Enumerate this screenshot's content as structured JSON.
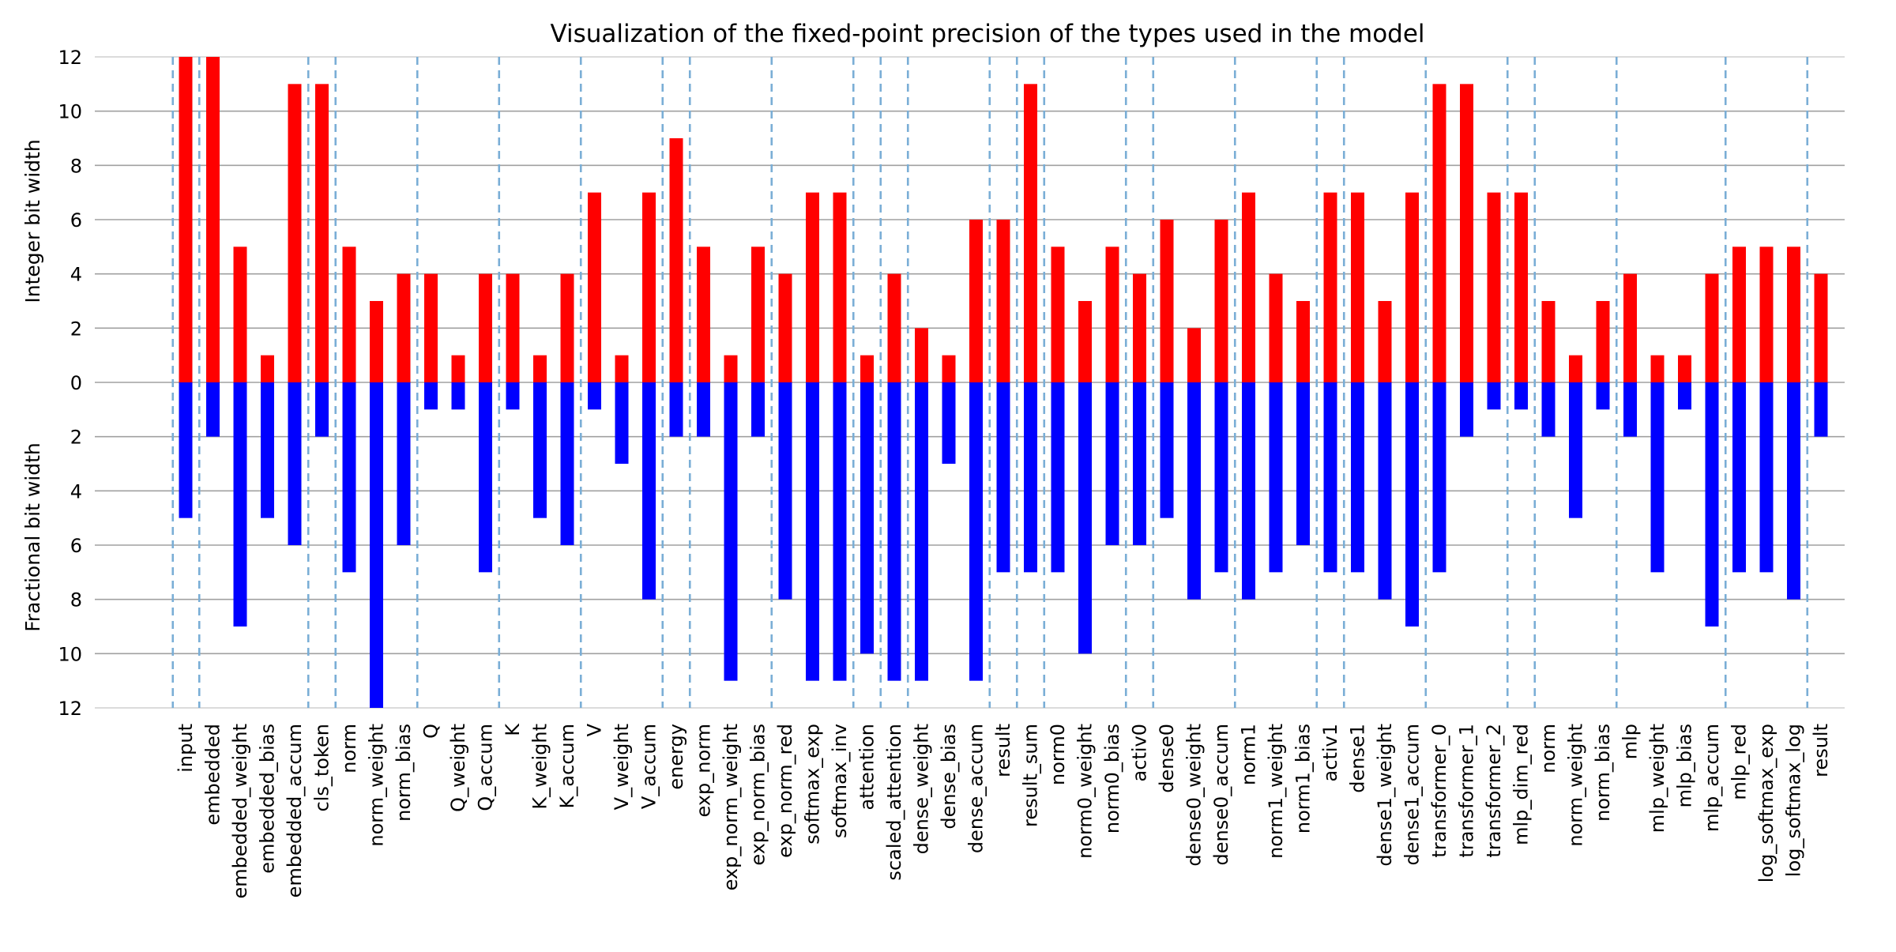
{
  "chart_data": {
    "type": "bar",
    "title": "Visualization of the fixed-point precision of the types used in the model",
    "ylabel_top": "Integer bit width",
    "ylabel_bottom": "Fractional bit width",
    "ylim": [
      -12,
      12
    ],
    "yticks": [
      12,
      10,
      8,
      6,
      4,
      2,
      0,
      2,
      4,
      6,
      8,
      10,
      12
    ],
    "grid": "horizontal",
    "categories": [
      "input",
      "embedded",
      "embedded_weight",
      "embedded_bias",
      "embedded_accum",
      "cls_token",
      "norm",
      "norm_weight",
      "norm_bias",
      "Q",
      "Q_weight",
      "Q_accum",
      "K",
      "K_weight",
      "K_accum",
      "V",
      "V_weight",
      "V_accum",
      "energy",
      "exp_norm",
      "exp_norm_weight",
      "exp_norm_bias",
      "exp_norm_red",
      "softmax_exp",
      "softmax_inv",
      "attention",
      "scaled_attention",
      "dense_weight",
      "dense_bias",
      "dense_accum",
      "result",
      "result_sum",
      "norm0",
      "norm0_weight",
      "norm0_bias",
      "activ0",
      "dense0",
      "dense0_weight",
      "dense0_accum",
      "norm1",
      "norm1_weight",
      "norm1_bias",
      "activ1",
      "dense1",
      "dense1_weight",
      "dense1_accum",
      "transformer_0",
      "transformer_1",
      "transformer_2",
      "mlp_dim_red",
      "norm",
      "norm_weight",
      "norm_bias",
      "mlp",
      "mlp_weight",
      "mlp_bias",
      "mlp_accum",
      "mlp_red",
      "log_softmax_exp",
      "log_softmax_log",
      "result"
    ],
    "series": [
      {
        "name": "",
        "color": "#ff0000",
        "values": [
          12,
          12,
          5,
          1,
          11,
          11,
          5,
          3,
          4,
          4,
          1,
          4,
          4,
          1,
          4,
          7,
          1,
          7,
          9,
          5,
          1,
          5,
          4,
          7,
          7,
          1,
          4,
          2,
          1,
          6,
          6,
          11,
          5,
          3,
          5,
          4,
          6,
          2,
          6,
          7,
          4,
          3,
          7,
          7,
          3,
          7,
          11,
          11,
          7,
          7,
          3,
          1,
          3,
          4,
          1,
          1,
          4,
          5,
          5,
          5,
          4
        ]
      },
      {
        "name": "",
        "color": "#0000ff",
        "values": [
          5,
          2,
          9,
          5,
          6,
          2,
          7,
          12,
          6,
          1,
          1,
          7,
          1,
          5,
          6,
          1,
          3,
          8,
          2,
          2,
          11,
          2,
          8,
          11,
          11,
          10,
          11,
          11,
          3,
          11,
          7,
          7,
          7,
          10,
          6,
          6,
          5,
          8,
          7,
          8,
          7,
          6,
          7,
          7,
          8,
          9,
          7,
          2,
          1,
          1,
          2,
          5,
          1,
          2,
          7,
          1,
          9,
          7,
          7,
          8,
          2
        ]
      }
    ],
    "group_separators_after": [
      0,
      4,
      5,
      8,
      11,
      14,
      17,
      18,
      21,
      24,
      25,
      26,
      29,
      30,
      31,
      34,
      35,
      38,
      41,
      42,
      45,
      48,
      49,
      52,
      56,
      59
    ],
    "separator_color": "#7aaed6",
    "grid_color": "#a0a0a0"
  }
}
